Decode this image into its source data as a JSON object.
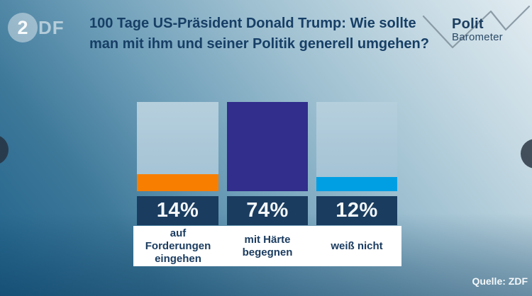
{
  "header": {
    "zdf_logo": {
      "disc_glyph": "2",
      "wordmark": "DF"
    },
    "title": "100 Tage US-Präsident Donald Trump: Wie sollte\nman mit ihm und seiner Politik generell umgehen?",
    "politbarometer": {
      "line1": "Polit",
      "line2": "Barometer"
    }
  },
  "chart_data": {
    "type": "bar",
    "title": "100 Tage US-Präsident Donald Trump: Wie sollte man mit ihm und seiner Politik generell umgehen?",
    "categories": [
      "auf Forderungen eingehen",
      "mit Härte begegnen",
      "weiß nicht"
    ],
    "values": [
      14,
      74,
      12
    ],
    "unit": "%",
    "value_labels": [
      "14%",
      "74%",
      "12%"
    ],
    "bar_colors": [
      "#f87e00",
      "#312e8c",
      "#009fe3"
    ],
    "track_color": "#a9c6d6",
    "scale_max": 74,
    "ylim": [
      0,
      74
    ],
    "grid": false,
    "legend": false,
    "source": "Quelle: ZDF"
  },
  "bars": [
    {
      "label_multiline": "auf\nForderungen\neingehen"
    },
    {
      "label_multiline": "mit Härte\nbegegnen"
    },
    {
      "label_multiline": "weiß nicht"
    }
  ],
  "footer": {
    "source": "Quelle: ZDF"
  },
  "colors": {
    "title_text": "#173f66",
    "value_box": "#1a3c5f",
    "value_text": "#f3f7fa",
    "label_box": "#ffffff",
    "label_text": "#1b3c60",
    "accent_orange": "#f87e00",
    "accent_indigo": "#312e8c",
    "accent_cyan": "#009fe3",
    "background_dark": "#20618a",
    "background_light": "#e2ecf1"
  }
}
